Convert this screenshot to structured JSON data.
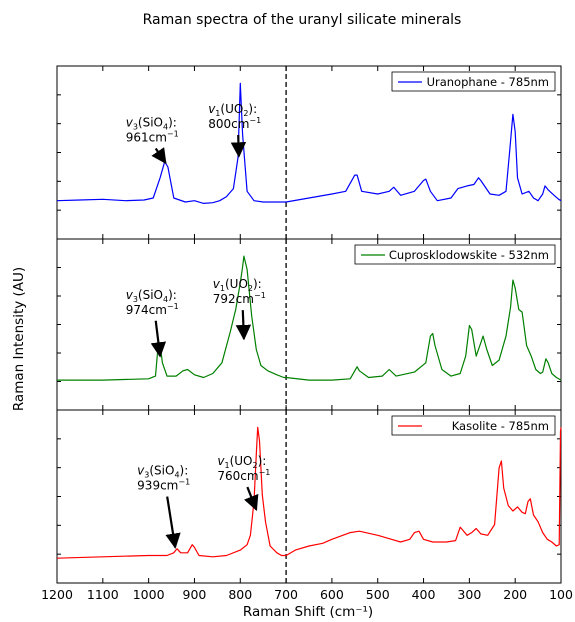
{
  "chart_data": {
    "type": "line",
    "title": "Raman spectra of the uranyl silicate minerals",
    "xlabel": "Raman Shift (cm⁻¹)",
    "ylabel": "Raman Intensity (AU)",
    "xlim": [
      1200,
      100
    ],
    "x_reversed": true,
    "x_ticks": [
      1200,
      1100,
      1000,
      900,
      800,
      700,
      600,
      500,
      400,
      300,
      200,
      100
    ],
    "y_tick_labels": false,
    "grid": false,
    "vertical_reference_line": {
      "x": 700,
      "style": "dashed"
    },
    "legend_position": "upper right",
    "series": [
      {
        "name": "Uranophane - 785nm",
        "color": "#0000ff",
        "ylim": [
          0,
          1
        ],
        "points": [
          [
            1200,
            0.13
          ],
          [
            1150,
            0.135
          ],
          [
            1100,
            0.14
          ],
          [
            1050,
            0.13
          ],
          [
            1010,
            0.135
          ],
          [
            990,
            0.15
          ],
          [
            975,
            0.3
          ],
          [
            965,
            0.42
          ],
          [
            958,
            0.38
          ],
          [
            945,
            0.15
          ],
          [
            920,
            0.12
          ],
          [
            900,
            0.13
          ],
          [
            880,
            0.11
          ],
          [
            860,
            0.115
          ],
          [
            845,
            0.13
          ],
          [
            830,
            0.16
          ],
          [
            815,
            0.22
          ],
          [
            805,
            0.45
          ],
          [
            800,
            1.0
          ],
          [
            795,
            0.62
          ],
          [
            785,
            0.2
          ],
          [
            770,
            0.13
          ],
          [
            750,
            0.12
          ],
          [
            720,
            0.12
          ],
          [
            700,
            0.12
          ],
          [
            650,
            0.15
          ],
          [
            600,
            0.18
          ],
          [
            570,
            0.2
          ],
          [
            550,
            0.32
          ],
          [
            545,
            0.32
          ],
          [
            535,
            0.2
          ],
          [
            500,
            0.18
          ],
          [
            475,
            0.2
          ],
          [
            465,
            0.23
          ],
          [
            450,
            0.17
          ],
          [
            420,
            0.2
          ],
          [
            400,
            0.28
          ],
          [
            395,
            0.29
          ],
          [
            385,
            0.2
          ],
          [
            370,
            0.13
          ],
          [
            340,
            0.15
          ],
          [
            325,
            0.22
          ],
          [
            305,
            0.24
          ],
          [
            290,
            0.25
          ],
          [
            280,
            0.3
          ],
          [
            275,
            0.28
          ],
          [
            255,
            0.18
          ],
          [
            235,
            0.17
          ],
          [
            220,
            0.2
          ],
          [
            212,
            0.5
          ],
          [
            205,
            0.77
          ],
          [
            200,
            0.64
          ],
          [
            195,
            0.3
          ],
          [
            185,
            0.18
          ],
          [
            170,
            0.2
          ],
          [
            160,
            0.15
          ],
          [
            150,
            0.13
          ],
          [
            140,
            0.18
          ],
          [
            135,
            0.24
          ],
          [
            128,
            0.21
          ],
          [
            115,
            0.17
          ],
          [
            105,
            0.14
          ],
          [
            100,
            0.13
          ]
        ]
      },
      {
        "name": "Cuprosklodowskite - 532nm",
        "color": "#008000",
        "ylim": [
          0,
          1
        ],
        "points": [
          [
            1200,
            0.07
          ],
          [
            1100,
            0.07
          ],
          [
            1000,
            0.08
          ],
          [
            985,
            0.1
          ],
          [
            980,
            0.3
          ],
          [
            975,
            0.34
          ],
          [
            970,
            0.2
          ],
          [
            960,
            0.1
          ],
          [
            940,
            0.1
          ],
          [
            925,
            0.14
          ],
          [
            915,
            0.15
          ],
          [
            900,
            0.11
          ],
          [
            880,
            0.09
          ],
          [
            860,
            0.12
          ],
          [
            840,
            0.2
          ],
          [
            822,
            0.43
          ],
          [
            810,
            0.6
          ],
          [
            800,
            0.8
          ],
          [
            795,
            0.92
          ],
          [
            792,
            1.0
          ],
          [
            785,
            0.9
          ],
          [
            775,
            0.55
          ],
          [
            765,
            0.3
          ],
          [
            755,
            0.18
          ],
          [
            740,
            0.14
          ],
          [
            720,
            0.11
          ],
          [
            705,
            0.09
          ],
          [
            700,
            0.09
          ],
          [
            650,
            0.07
          ],
          [
            600,
            0.07
          ],
          [
            560,
            0.08
          ],
          [
            545,
            0.17
          ],
          [
            540,
            0.14
          ],
          [
            520,
            0.09
          ],
          [
            490,
            0.1
          ],
          [
            475,
            0.15
          ],
          [
            460,
            0.1
          ],
          [
            420,
            0.13
          ],
          [
            395,
            0.2
          ],
          [
            385,
            0.4
          ],
          [
            380,
            0.42
          ],
          [
            375,
            0.33
          ],
          [
            360,
            0.15
          ],
          [
            340,
            0.1
          ],
          [
            320,
            0.12
          ],
          [
            308,
            0.25
          ],
          [
            300,
            0.48
          ],
          [
            295,
            0.45
          ],
          [
            285,
            0.25
          ],
          [
            275,
            0.35
          ],
          [
            270,
            0.4
          ],
          [
            262,
            0.3
          ],
          [
            250,
            0.18
          ],
          [
            235,
            0.22
          ],
          [
            220,
            0.4
          ],
          [
            210,
            0.62
          ],
          [
            205,
            0.82
          ],
          [
            200,
            0.76
          ],
          [
            192,
            0.6
          ],
          [
            185,
            0.58
          ],
          [
            175,
            0.33
          ],
          [
            165,
            0.25
          ],
          [
            155,
            0.15
          ],
          [
            145,
            0.12
          ],
          [
            140,
            0.13
          ],
          [
            133,
            0.23
          ],
          [
            128,
            0.2
          ],
          [
            120,
            0.12
          ],
          [
            110,
            0.09
          ],
          [
            100,
            0.07
          ]
        ]
      },
      {
        "name": "Kasolite - 785nm",
        "color": "#ff0000",
        "ylim": [
          0,
          1
        ],
        "points": [
          [
            1200,
            0.03
          ],
          [
            1100,
            0.04
          ],
          [
            1000,
            0.05
          ],
          [
            960,
            0.05
          ],
          [
            945,
            0.07
          ],
          [
            938,
            0.1
          ],
          [
            930,
            0.07
          ],
          [
            915,
            0.07
          ],
          [
            905,
            0.13
          ],
          [
            900,
            0.11
          ],
          [
            890,
            0.05
          ],
          [
            860,
            0.04
          ],
          [
            830,
            0.05
          ],
          [
            800,
            0.09
          ],
          [
            785,
            0.13
          ],
          [
            778,
            0.2
          ],
          [
            770,
            0.45
          ],
          [
            765,
            0.8
          ],
          [
            762,
            1.0
          ],
          [
            758,
            0.9
          ],
          [
            752,
            0.5
          ],
          [
            745,
            0.3
          ],
          [
            735,
            0.12
          ],
          [
            720,
            0.07
          ],
          [
            710,
            0.05
          ],
          [
            700,
            0.05
          ],
          [
            680,
            0.09
          ],
          [
            650,
            0.12
          ],
          [
            620,
            0.14
          ],
          [
            600,
            0.17
          ],
          [
            560,
            0.22
          ],
          [
            540,
            0.23
          ],
          [
            500,
            0.2
          ],
          [
            470,
            0.17
          ],
          [
            450,
            0.15
          ],
          [
            430,
            0.17
          ],
          [
            420,
            0.22
          ],
          [
            410,
            0.23
          ],
          [
            400,
            0.17
          ],
          [
            380,
            0.15
          ],
          [
            350,
            0.15
          ],
          [
            330,
            0.16
          ],
          [
            320,
            0.26
          ],
          [
            315,
            0.24
          ],
          [
            305,
            0.2
          ],
          [
            295,
            0.22
          ],
          [
            285,
            0.25
          ],
          [
            275,
            0.21
          ],
          [
            260,
            0.2
          ],
          [
            245,
            0.28
          ],
          [
            235,
            0.7
          ],
          [
            230,
            0.75
          ],
          [
            225,
            0.55
          ],
          [
            215,
            0.42
          ],
          [
            205,
            0.38
          ],
          [
            195,
            0.41
          ],
          [
            185,
            0.37
          ],
          [
            178,
            0.36
          ],
          [
            172,
            0.45
          ],
          [
            167,
            0.47
          ],
          [
            160,
            0.35
          ],
          [
            150,
            0.3
          ],
          [
            140,
            0.22
          ],
          [
            130,
            0.17
          ],
          [
            120,
            0.15
          ],
          [
            110,
            0.12
          ],
          [
            104,
            0.13
          ],
          [
            101,
            0.97
          ],
          [
            100,
            1.0
          ]
        ]
      }
    ],
    "annotations": [
      {
        "panel": 0,
        "mode": "v3",
        "ion": "SiO",
        "sub": "4",
        "value": "961cm",
        "exp": "−1",
        "label_at": [
          1050,
          0.68
        ],
        "arrow_to": [
          963,
          0.41
        ]
      },
      {
        "panel": 0,
        "mode": "v1",
        "ion": "UO",
        "sub": "2",
        "value": "800cm",
        "exp": "−1",
        "label_at": [
          870,
          0.78
        ],
        "arrow_to": [
          803,
          0.46
        ]
      },
      {
        "panel": 1,
        "mode": "v3",
        "ion": "SiO",
        "sub": "4",
        "value": "974cm",
        "exp": "−1",
        "label_at": [
          1050,
          0.68
        ],
        "arrow_to": [
          975,
          0.25
        ]
      },
      {
        "panel": 1,
        "mode": "v1",
        "ion": "UO",
        "sub": "2",
        "value": "792cm",
        "exp": "−1",
        "label_at": [
          860,
          0.76
        ],
        "arrow_to": [
          792,
          0.38
        ]
      },
      {
        "panel": 2,
        "mode": "v3",
        "ion": "SiO",
        "sub": "4",
        "value": "939cm",
        "exp": "−1",
        "label_at": [
          1025,
          0.65
        ],
        "arrow_to": [
          942,
          0.11
        ]
      },
      {
        "panel": 2,
        "mode": "v1",
        "ion": "UO",
        "sub": "2",
        "value": "760cm",
        "exp": "−1",
        "label_at": [
          850,
          0.72
        ],
        "arrow_to": [
          765,
          0.39
        ]
      }
    ]
  }
}
